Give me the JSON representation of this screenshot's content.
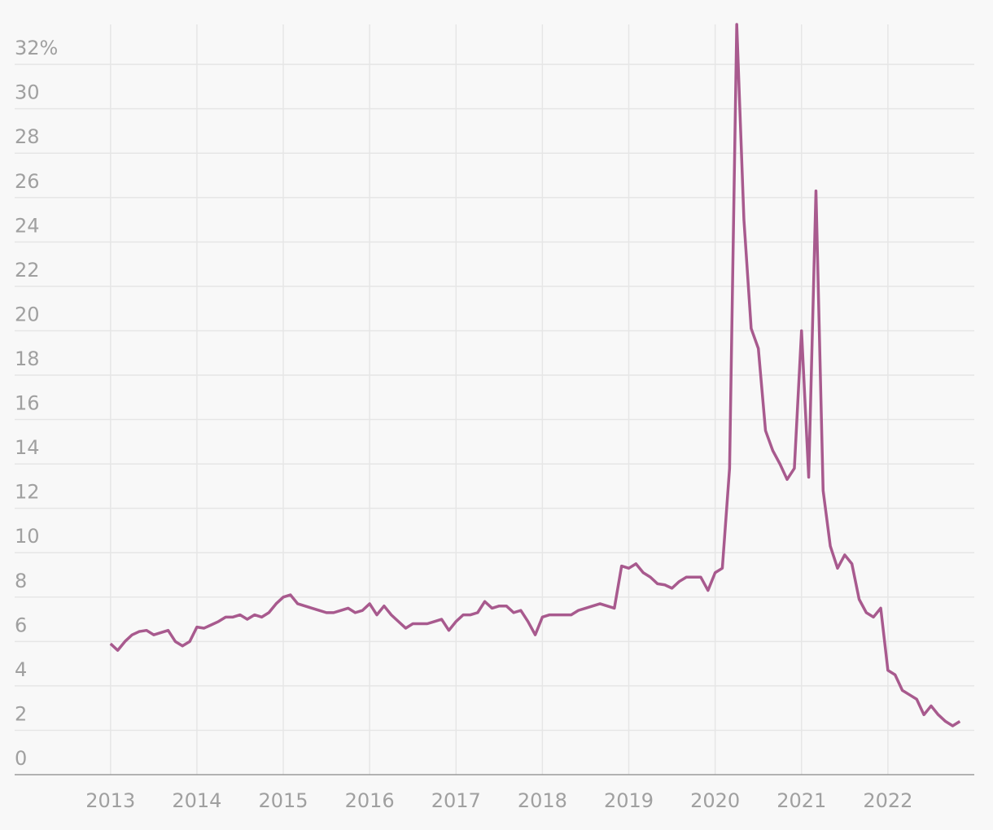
{
  "chart_data": {
    "type": "line",
    "x": [
      2013,
      2013.083,
      2013.167,
      2013.25,
      2013.333,
      2013.417,
      2013.5,
      2013.583,
      2013.667,
      2013.75,
      2013.833,
      2013.917,
      2014,
      2014.083,
      2014.167,
      2014.25,
      2014.333,
      2014.417,
      2014.5,
      2014.583,
      2014.667,
      2014.75,
      2014.833,
      2014.917,
      2015,
      2015.083,
      2015.167,
      2015.25,
      2015.333,
      2015.417,
      2015.5,
      2015.583,
      2015.667,
      2015.75,
      2015.833,
      2015.917,
      2016,
      2016.083,
      2016.167,
      2016.25,
      2016.333,
      2016.417,
      2016.5,
      2016.583,
      2016.667,
      2016.75,
      2016.833,
      2016.917,
      2017,
      2017.083,
      2017.167,
      2017.25,
      2017.333,
      2017.417,
      2017.5,
      2017.583,
      2017.667,
      2017.75,
      2017.833,
      2017.917,
      2018,
      2018.083,
      2018.167,
      2018.25,
      2018.333,
      2018.417,
      2018.5,
      2018.583,
      2018.667,
      2018.75,
      2018.833,
      2018.917,
      2019,
      2019.083,
      2019.167,
      2019.25,
      2019.333,
      2019.417,
      2019.5,
      2019.583,
      2019.667,
      2019.75,
      2019.833,
      2019.917,
      2020,
      2020.083,
      2020.167,
      2020.25,
      2020.333,
      2020.417,
      2020.5,
      2020.583,
      2020.667,
      2020.75,
      2020.833,
      2020.917,
      2021,
      2021.083,
      2021.167,
      2021.25,
      2021.333,
      2021.417,
      2021.5,
      2021.583,
      2021.667,
      2021.75,
      2021.833,
      2021.917,
      2022,
      2022.083,
      2022.167,
      2022.25,
      2022.333,
      2022.417,
      2022.5,
      2022.583,
      2022.667,
      2022.75,
      2022.833
    ],
    "series": [
      {
        "color": "#a85a8e",
        "values": [
          5.9,
          5.6,
          6.0,
          6.3,
          6.45,
          6.5,
          6.3,
          6.4,
          6.5,
          6.0,
          5.8,
          6.0,
          6.65,
          6.6,
          6.75,
          6.9,
          7.1,
          7.1,
          7.2,
          7.0,
          7.2,
          7.1,
          7.3,
          7.7,
          8.0,
          8.1,
          7.7,
          7.6,
          7.5,
          7.4,
          7.3,
          7.3,
          7.4,
          7.5,
          7.3,
          7.4,
          7.7,
          7.2,
          7.6,
          7.2,
          6.9,
          6.6,
          6.8,
          6.8,
          6.8,
          6.9,
          7.0,
          6.5,
          6.9,
          7.2,
          7.2,
          7.3,
          7.8,
          7.5,
          7.6,
          7.6,
          7.3,
          7.4,
          6.9,
          6.3,
          7.1,
          7.2,
          7.2,
          7.2,
          7.2,
          7.4,
          7.5,
          7.6,
          7.7,
          7.6,
          7.5,
          9.4,
          9.3,
          9.5,
          9.1,
          8.9,
          8.6,
          8.55,
          8.4,
          8.7,
          8.9,
          8.9,
          8.9,
          8.3,
          9.1,
          9.3,
          13.8,
          33.8,
          25.0,
          20.1,
          19.2,
          15.5,
          14.6,
          14.0,
          13.3,
          13.8,
          20.0,
          13.4,
          26.3,
          12.8,
          10.3,
          9.3,
          9.9,
          9.5,
          7.9,
          7.3,
          7.1,
          7.5,
          4.7,
          4.5,
          3.8,
          3.6,
          3.4,
          2.7,
          3.1,
          2.7,
          2.4,
          2.2,
          2.4
        ]
      }
    ],
    "xlim": [
      2011.89,
      2023
    ],
    "xticks": [
      2013,
      2014,
      2015,
      2016,
      2017,
      2018,
      2019,
      2020,
      2021,
      2022
    ],
    "ylim": [
      0,
      33.8
    ],
    "yticks": [
      0,
      2,
      4,
      6,
      8,
      10,
      12,
      14,
      16,
      18,
      20,
      22,
      24,
      26,
      28,
      30,
      {
        "value": 32,
        "label": "32%"
      }
    ],
    "grid": true
  }
}
